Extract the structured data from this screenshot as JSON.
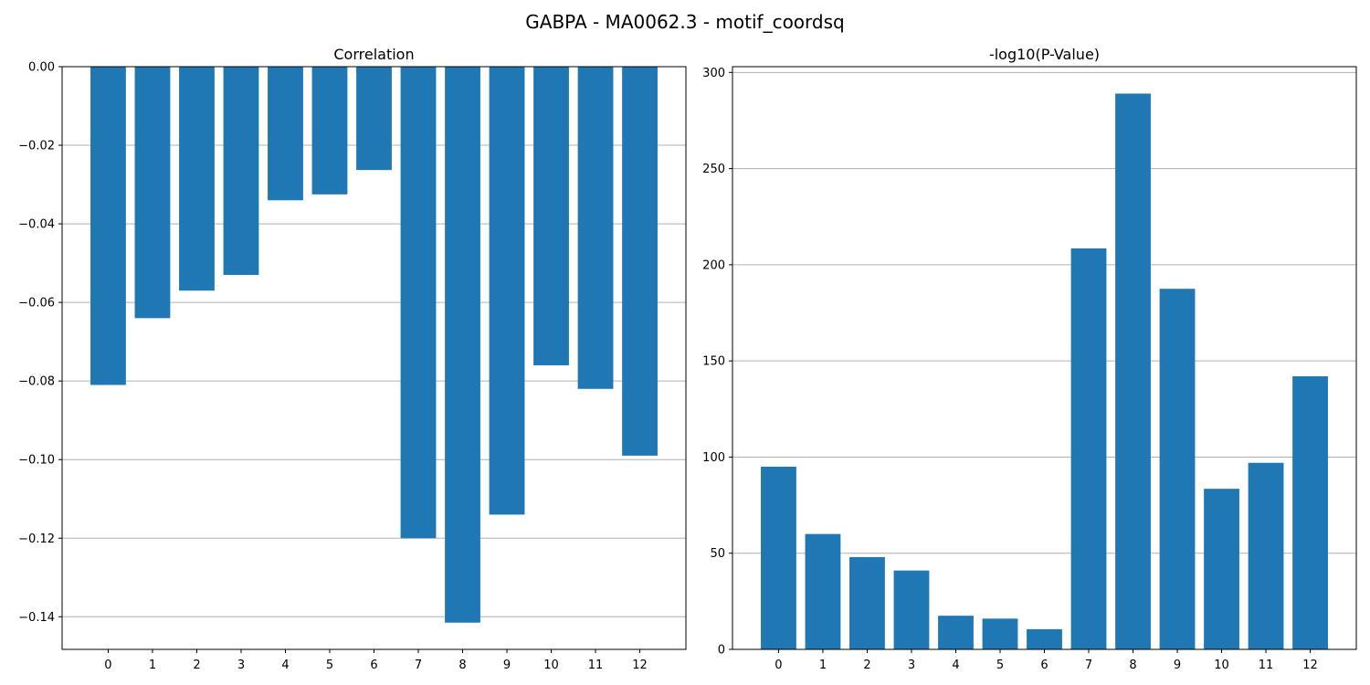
{
  "figure": {
    "suptitle": "GABPA - MA0062.3 - motif_coordsq"
  },
  "colors": {
    "bar": "#1f77b4",
    "grid": "#b0b0b0",
    "axis": "#000000",
    "background": "#ffffff"
  },
  "chart_data": [
    {
      "type": "bar",
      "title": "Correlation",
      "xlabel": "",
      "ylabel": "",
      "categories": [
        "0",
        "1",
        "2",
        "3",
        "4",
        "5",
        "6",
        "7",
        "8",
        "9",
        "10",
        "11",
        "12"
      ],
      "values": [
        -0.081,
        -0.064,
        -0.057,
        -0.053,
        -0.034,
        -0.0325,
        -0.0263,
        -0.12,
        -0.1415,
        -0.114,
        -0.076,
        -0.082,
        -0.099
      ],
      "ylim": [
        -0.1483,
        0.0
      ],
      "yticks": [
        0.0,
        -0.02,
        -0.04,
        -0.06,
        -0.08,
        -0.1,
        -0.12,
        -0.14
      ],
      "ytick_labels": [
        "0.00",
        "−0.02",
        "−0.04",
        "−0.06",
        "−0.08",
        "−0.10",
        "−0.12",
        "−0.14"
      ],
      "grid": "y"
    },
    {
      "type": "bar",
      "title": "-log10(P-Value)",
      "xlabel": "",
      "ylabel": "",
      "categories": [
        "0",
        "1",
        "2",
        "3",
        "4",
        "5",
        "6",
        "7",
        "8",
        "9",
        "10",
        "11",
        "12"
      ],
      "values": [
        95,
        60,
        48,
        41,
        17.5,
        16,
        10.5,
        208.5,
        289,
        187.5,
        83.5,
        97,
        142
      ],
      "ylim": [
        0,
        303
      ],
      "yticks": [
        0,
        50,
        100,
        150,
        200,
        250,
        300
      ],
      "ytick_labels": [
        "0",
        "50",
        "100",
        "150",
        "200",
        "250",
        "300"
      ],
      "grid": "y"
    }
  ]
}
